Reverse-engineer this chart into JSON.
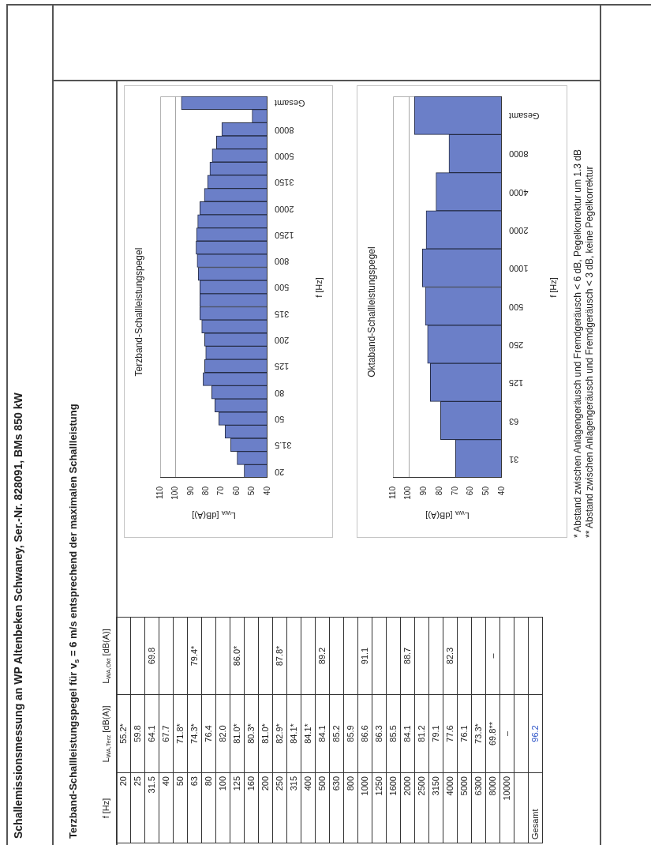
{
  "chart_data": [
    {
      "type": "other",
      "title": "Schallemissionsmessung an WP Altenbeken Schwaney, Ser.-Nr. 828091, BMs 850 kW",
      "subtitle": "Terzband-Schallleistungspegel für v$_{s}$ = 6 m/s entsprechend der maximalen Schallleistung",
      "xlabel": "f [Hz]",
      "categories": [
        "20",
        "25",
        "31.5",
        "40",
        "50",
        "63",
        "80",
        "100",
        "125",
        "160",
        "200",
        "250",
        "315",
        "400",
        "500",
        "630",
        "800",
        "1000",
        "1250",
        "1600",
        "2000",
        "2500",
        "3150",
        "4000",
        "5000",
        "6300",
        "8000",
        "10000",
        null,
        "Gesamt"
      ],
      "series": [
        {
          "name": "L$_{WA,Terz}$ [dB(A)]",
          "values": [
            55.2,
            59.8,
            64.1,
            67.7,
            71.8,
            74.3,
            76.4,
            82.0,
            81.0,
            80.3,
            81.0,
            82.9,
            84.1,
            84.1,
            84.1,
            85.2,
            85.9,
            86.6,
            86.3,
            85.5,
            84.1,
            81.2,
            79.1,
            77.6,
            76.1,
            73.3,
            69.8,
            null,
            null,
            96.2
          ],
          "value_labels": [
            "55.2*",
            "59.8",
            "64.1",
            "67.7",
            "71.8*",
            "74.3*",
            "76.4",
            "82.0",
            "81.0*",
            "80.3*",
            "81.0*",
            "82.9*",
            "84.1*",
            "84.1*",
            "84.1",
            "85.2",
            "85.9",
            "86.6",
            "86.3",
            "85.5",
            "84.1",
            "81.2",
            "79.1",
            "77.6",
            "76.1",
            "73.3*",
            "69.8**",
            "–",
            null,
            "96.2"
          ]
        },
        {
          "name": "L$_{WA,Okt}$ [dB(A)]",
          "values": [
            null,
            null,
            69.8,
            null,
            null,
            79.4,
            null,
            null,
            86.0,
            null,
            null,
            87.8,
            null,
            null,
            89.2,
            null,
            null,
            91.1,
            null,
            null,
            88.7,
            null,
            null,
            82.3,
            null,
            null,
            null,
            null,
            null,
            null
          ],
          "value_labels": [
            null,
            null,
            "69.8",
            null,
            null,
            "79.4*",
            null,
            null,
            "86.0*",
            null,
            null,
            "87.8*",
            null,
            null,
            "89.2",
            null,
            null,
            "91.1",
            null,
            null,
            "88.7",
            null,
            null,
            "82.3",
            null,
            null,
            "–",
            null,
            null,
            null
          ]
        }
      ],
      "annotations": [
        "* Abstand zwischen Anlagengeräusch und Fremdgeräusch < 6 dB, Pegelkorrektur um 1.3 dB",
        "** Abstand zwischen Anlagengeräusch und Fremdgeräusch < 3 dB, keine Pegelkorrektur"
      ]
    },
    {
      "type": "bar",
      "orientation": "horizontal",
      "title": "Terzband-Schallleistungspegel",
      "xlabel": "L$_{WA}$ [dB(A)]",
      "ylabel": "f [Hz]",
      "categories": [
        "Gesamt",
        null,
        "8000",
        null,
        "5000",
        null,
        "3150",
        null,
        "2000",
        null,
        "1250",
        null,
        "800",
        null,
        "500",
        null,
        "315",
        null,
        "200",
        null,
        "125",
        null,
        "80",
        null,
        "50",
        null,
        "31.5",
        null,
        "20"
      ],
      "values": [
        96.2,
        50,
        69.8,
        73.3,
        76.1,
        77.6,
        79.1,
        81.2,
        84.1,
        85.5,
        86.3,
        86.6,
        85.9,
        85.2,
        84.1,
        84.1,
        84.1,
        82.9,
        81.0,
        80.3,
        81.0,
        82.0,
        76.4,
        74.3,
        71.8,
        67.7,
        64.1,
        59.8,
        55.2
      ],
      "color": "#6b7fc8",
      "xlim": [
        110,
        40
      ],
      "xticks": [
        110,
        100,
        90,
        80,
        70,
        60,
        50,
        40
      ],
      "ref_lines": [
        {
          "axis": "x",
          "value": 100,
          "color": "#a6a6a6"
        }
      ]
    },
    {
      "type": "bar",
      "orientation": "horizontal",
      "title": "Oktaband-Schallleistungspegel",
      "xlabel": "L$_{WA}$ [dB(A)]",
      "ylabel": "f [Hz]",
      "categories": [
        "Gesamt",
        "8000",
        "4000",
        "2000",
        "1000",
        "500",
        "250",
        "125",
        "63",
        "31"
      ],
      "values": [
        96.2,
        74,
        82.3,
        88.7,
        91.1,
        89.2,
        87.8,
        86.0,
        79.4,
        69.8
      ],
      "color": "#6b7fc8",
      "xlim": [
        110,
        40
      ],
      "xticks": [
        110,
        100,
        90,
        80,
        70,
        60,
        50,
        40
      ],
      "ref_lines": [
        {
          "axis": "x",
          "value": 100,
          "color": "#a6a6a6"
        }
      ]
    }
  ]
}
